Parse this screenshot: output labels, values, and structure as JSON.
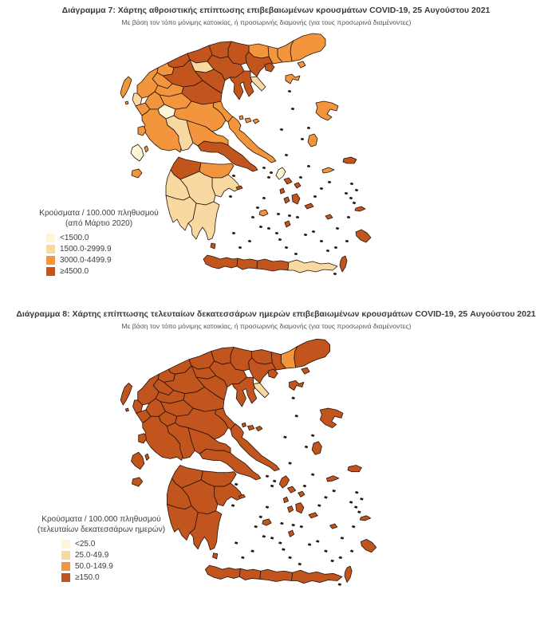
{
  "page": {
    "background": "#ffffff",
    "border_color": "#26140a"
  },
  "diagram7": {
    "title": "Διάγραμμα 7: Χάρτης αθροιστικής επίπτωσης επιβεβαιωμένων κρουσμάτων COVID-19, 25 Αυγούστου 2021",
    "subtitle": "Με βάση τον τόπο μόνιμης κατοικίας, ή προσωρινής διαμονής (για τους προσωρινά διαμένοντες)",
    "legend": {
      "title_line1": "Κρούσματα / 100.000 πληθυσμού",
      "title_line2": "(από Μάρτιο 2020)",
      "items": [
        {
          "label": "<1500.0",
          "color": "#FDF6D6"
        },
        {
          "label": "1500.0-2999.9",
          "color": "#F9D9A2"
        },
        {
          "label": "3000.0-4499.9",
          "color": "#F3953C"
        },
        {
          "label": "≥4500.0",
          "color": "#C2541D"
        }
      ]
    },
    "region_categories": {
      "evros": 2,
      "rodopi": 2,
      "xanthi": 2,
      "drama": 2,
      "kavala": 3,
      "serres": 3,
      "kilkis": 3,
      "pella": 3,
      "florina": 3,
      "kastoria": 2,
      "thessaloniki": 3,
      "chalkidiki": 3,
      "athos": 1,
      "imathia": 1,
      "pieria": 3,
      "kozani": 3,
      "grevena": 2,
      "ioannina": 2,
      "thesprotia": 1,
      "trikala": 2,
      "larissa": 3,
      "magnesia": 2,
      "karditsa": 2,
      "arta": 2,
      "preveza": 2,
      "evrytania": 0,
      "fthiotida": 2,
      "aetolia": 2,
      "fokida": 1,
      "boeotia": 2,
      "attica": 3,
      "euboea": 2,
      "achaia": 3,
      "corinthia": 2,
      "argolida": 1,
      "arcadia": 1,
      "ilia": 1,
      "messinia": 1,
      "laconia": 1,
      "corfu": 2,
      "paxi": 2,
      "lefkada": 2,
      "kefalonia": 0,
      "ithaki": 2,
      "zakynthos": 2,
      "kythira": 3,
      "chania": 3,
      "rethymno": 3,
      "heraklion": 3,
      "lasithi": 1,
      "thasos": 3,
      "samothraki": 2,
      "limnos": 2,
      "lesbos": 2,
      "chios": 2,
      "samos": 3,
      "ikaria": 2,
      "skiathos": 2,
      "skopelos": 2,
      "alonissos": 2,
      "andros": 0,
      "tinos": 3,
      "mykonos": 3,
      "syros": 3,
      "paros": 3,
      "naxos": 3,
      "milos": 2,
      "santorini": 3,
      "amorgos": 3,
      "astypalaia": 3,
      "rhodes": 3,
      "kos": 3,
      "karpathos": 3,
      "hydra": 3
    }
  },
  "diagram8": {
    "title": "Διάγραμμα 8: Χάρτης επίπτωσης τελευταίων δεκατεσσάρων ημερών επιβεβαιωμένων κρουσμάτων COVID-19, 25 Αυγούστου 2021",
    "subtitle": "Με βάση τον τόπο μόνιμης κατοικίας, ή προσωρινής διαμονής (για τους προσωρινά διαμένοντες)",
    "legend": {
      "title_line1": "Κρούσματα / 100.000 πληθυσμού",
      "title_line2": "(τελευταίων δεκατεσσάρων ημερών)",
      "items": [
        {
          "label": "<25.0",
          "color": "#FDF6D6"
        },
        {
          "label": "25.0-49.9",
          "color": "#F9D9A2"
        },
        {
          "label": "50.0-149.9",
          "color": "#F3953C"
        },
        {
          "label": "≥150.0",
          "color": "#C2541D"
        }
      ]
    },
    "region_categories": {
      "evros": 3,
      "rodopi": 2,
      "xanthi": 3,
      "drama": 3,
      "kavala": 3,
      "serres": 3,
      "kilkis": 3,
      "pella": 3,
      "florina": 3,
      "kastoria": 3,
      "thessaloniki": 3,
      "chalkidiki": 3,
      "athos": 1,
      "imathia": 3,
      "pieria": 3,
      "kozani": 3,
      "grevena": 3,
      "ioannina": 3,
      "thesprotia": 3,
      "trikala": 3,
      "larissa": 3,
      "magnesia": 3,
      "karditsa": 3,
      "arta": 3,
      "preveza": 3,
      "evrytania": 3,
      "fthiotida": 3,
      "aetolia": 3,
      "fokida": 3,
      "boeotia": 3,
      "attica": 3,
      "euboea": 3,
      "achaia": 3,
      "corinthia": 3,
      "argolida": 3,
      "arcadia": 3,
      "ilia": 3,
      "messinia": 3,
      "laconia": 3,
      "corfu": 3,
      "paxi": 3,
      "lefkada": 3,
      "kefalonia": 3,
      "ithaki": 3,
      "zakynthos": 3,
      "kythira": 3,
      "chania": 3,
      "rethymno": 3,
      "heraklion": 3,
      "lasithi": 3,
      "thasos": 3,
      "samothraki": 3,
      "limnos": 3,
      "lesbos": 3,
      "chios": 3,
      "samos": 3,
      "ikaria": 3,
      "skiathos": 3,
      "skopelos": 3,
      "alonissos": 3,
      "andros": 3,
      "tinos": 3,
      "mykonos": 3,
      "syros": 3,
      "paros": 3,
      "naxos": 3,
      "milos": 3,
      "santorini": 3,
      "amorgos": 3,
      "astypalaia": 3,
      "rhodes": 3,
      "kos": 3,
      "karpathos": 3,
      "hydra": 3
    }
  }
}
